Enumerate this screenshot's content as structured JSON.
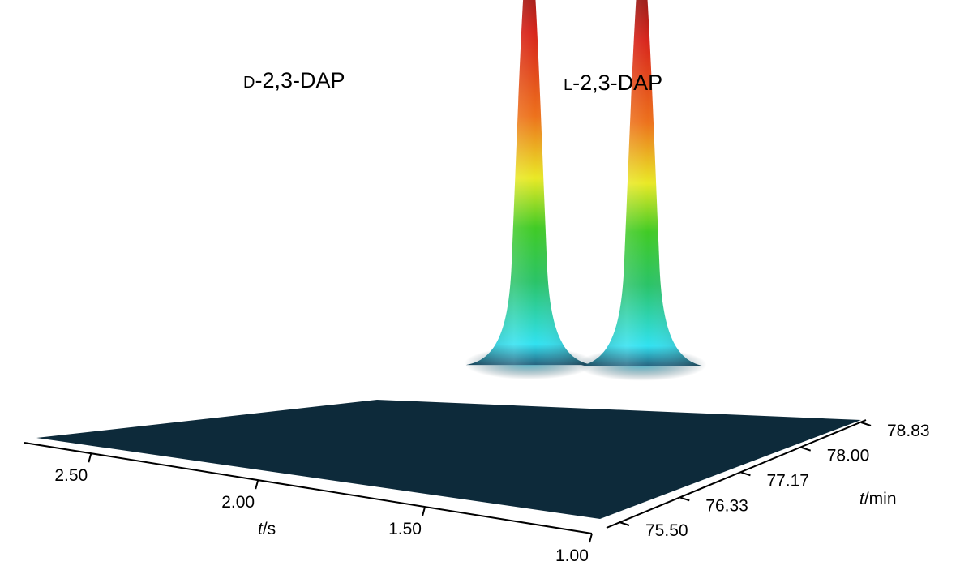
{
  "chart_data": {
    "type": "surface",
    "x_axis": {
      "label_var": "t",
      "label_unit": "/s",
      "ticks": [
        "2.50",
        "2.00",
        "1.50",
        "1.00"
      ],
      "range": [
        2.7,
        1.0
      ]
    },
    "y_axis": {
      "label_var": "t",
      "label_unit": "/min",
      "ticks": [
        "75.50",
        "76.33",
        "77.17",
        "78.00",
        "78.83"
      ],
      "range": [
        75.5,
        78.83
      ]
    },
    "peaks": [
      {
        "prefix": "D",
        "name": "-2,3-DAP",
        "x": 1.72,
        "y": 77.95,
        "relative_height": 1.0
      },
      {
        "prefix": "L",
        "name": "-2,3-DAP",
        "x": 1.47,
        "y": 78.35,
        "relative_height": 0.98
      }
    ],
    "colors": {
      "baseline": "#0d2a3a",
      "low": "#26e0f0",
      "mid": "#2ec41c",
      "high": "#e8e81a",
      "peak": "#d61a10"
    }
  }
}
